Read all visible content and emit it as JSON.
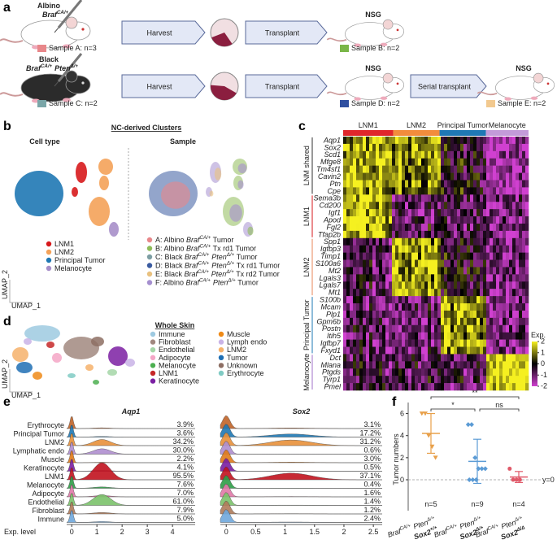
{
  "panel_a": {
    "label": "a",
    "donors": [
      {
        "strain": "Albino",
        "genotype": [
          {
            "t": "Braf",
            "sup": "CA/+"
          }
        ]
      },
      {
        "strain": "Black",
        "genotype": [
          {
            "t": "Braf",
            "sup": "CA/+"
          },
          {
            "t": "Pten",
            "sup": "Δ/+"
          }
        ]
      }
    ],
    "rows": [
      {
        "steps": [
          "Harvest",
          "Transplant"
        ],
        "hosts": [
          "NSG"
        ]
      },
      {
        "steps": [
          "Harvest",
          "Transplant",
          "Serial transplant"
        ],
        "hosts": [
          "NSG",
          "NSG"
        ]
      }
    ],
    "samples": [
      {
        "label": "Sample A: n=3",
        "color": "#e8878a"
      },
      {
        "label": "Sample B: n=2",
        "color": "#7ab648"
      },
      {
        "label": "Sample C: n=2",
        "color": "#7aa6a8"
      },
      {
        "label": "Sample D: n=2",
        "color": "#2f4fa0"
      },
      {
        "label": "Sample E: n=2",
        "color": "#f2c98f"
      }
    ]
  },
  "panel_b": {
    "label": "b",
    "title": "NC-derived Clusters",
    "left_title": "Cell type",
    "right_title": "Sample",
    "umap_y": "UMAP_2",
    "umap_x": "UMAP_1",
    "cell_types": [
      {
        "name": "LNM1",
        "color": "#d7191c"
      },
      {
        "name": "LNM2",
        "color": "#f4a259"
      },
      {
        "name": "Principal Tumor",
        "color": "#1f78b4"
      },
      {
        "name": "Melanocyte",
        "color": "#a78fc9"
      }
    ],
    "samples": [
      {
        "name": [
          "A: Albino ",
          {
            "t": "Braf",
            "sup": "CA/+"
          },
          " Tumor"
        ],
        "color": "#e8878a"
      },
      {
        "name": [
          "B: Albino ",
          {
            "t": "Braf",
            "sup": "CA/+"
          },
          " Tx rd1 Tumor"
        ],
        "color": "#8fbc5a"
      },
      {
        "name": [
          "C: Black ",
          {
            "t": "Braf",
            "sup": "CA/+"
          },
          {
            "t": "Pten",
            "sup": "Δ/+"
          },
          " Tumor"
        ],
        "color": "#7d9ea3"
      },
      {
        "name": [
          "D: Black ",
          {
            "t": "Braf",
            "sup": "CA/+"
          },
          {
            "t": "Pten",
            "sup": "Δ/+"
          },
          " Tx rd1 Tumor"
        ],
        "color": "#3a5ba0"
      },
      {
        "name": [
          "E: Black ",
          {
            "t": "Braf",
            "sup": "CA/+"
          },
          {
            "t": "Pten",
            "sup": "Δ/+"
          },
          " Tx rd2 Tumor"
        ],
        "color": "#e9c17f"
      },
      {
        "name": [
          "F: Albino ",
          {
            "t": "Braf",
            "sup": "CA/+"
          },
          {
            "t": "Pten",
            "sup": "Δ/+"
          },
          " Tumor"
        ],
        "color": "#a58fcf"
      }
    ]
  },
  "panel_c": {
    "label": "c",
    "clusters": [
      {
        "name": "LNM1",
        "color": "#e0262b"
      },
      {
        "name": "LNM2",
        "color": "#f28c3c"
      },
      {
        "name": "Principal Tumor",
        "color": "#1f78b4"
      },
      {
        "name": "Melanocyte",
        "color": "#c39bd9"
      }
    ],
    "groups": [
      {
        "name": "LNM shared",
        "color": "#333333",
        "genes": [
          "Aqp1",
          "Sox2",
          "Scd1",
          "Mfge8",
          "Tm4sf1",
          "Cavin2",
          "Ptn",
          "Cpe"
        ]
      },
      {
        "name": "LNM1",
        "color": "#d7191c",
        "genes": [
          "Sema3b",
          "Cd200",
          "Igf1",
          "Apod",
          "Fgl2",
          "Tfap2b"
        ]
      },
      {
        "name": "LNM2",
        "color": "#e8875a",
        "genes": [
          "Spp1",
          "Igfbp3",
          "Timp1",
          "S100a6",
          "Mt2",
          "Lgals3",
          "Lgals7",
          "Mt1"
        ]
      },
      {
        "name": "Principal Tumor",
        "color": "#1f78b4",
        "genes": [
          "S100b",
          "Mcam",
          "Plp1",
          "Gpm6b",
          "Postn",
          "Itih5",
          "Igfbp7",
          "Fxyd1"
        ]
      },
      {
        "name": "Melanocyte",
        "color": "#a070c8",
        "genes": [
          "Dct",
          "Mlana",
          "Ptgds",
          "Tyrp1",
          "Pmel"
        ]
      }
    ],
    "legend_title": "Exp.",
    "legend_ticks": [
      2,
      1,
      0,
      -1,
      -2
    ]
  },
  "panel_d": {
    "label": "d",
    "title": "Whole Skin",
    "umap_y": "UMAP_2",
    "umap_x": "UMAP_1",
    "cell_types": [
      {
        "name": "Immune",
        "color": "#9ecae1"
      },
      {
        "name": "Fibroblast",
        "color": "#a1887f"
      },
      {
        "name": "Endothelial",
        "color": "#a5d6a7"
      },
      {
        "name": "Adipocyte",
        "color": "#f4a6c6"
      },
      {
        "name": "Melanocyte",
        "color": "#4caf50"
      },
      {
        "name": "LNM1",
        "color": "#c62828"
      },
      {
        "name": "Keratinocyte",
        "color": "#7b1fa2"
      },
      {
        "name": "Muscle",
        "color": "#ef8a17"
      },
      {
        "name": "Lymph endo",
        "color": "#c9b3e6"
      },
      {
        "name": "LNM2",
        "color": "#f6b26b"
      },
      {
        "name": "Tumor",
        "color": "#1f6fb4"
      },
      {
        "name": "Unknown",
        "color": "#8d6e63"
      },
      {
        "name": "Erythrocyte",
        "color": "#80cbc4"
      }
    ]
  },
  "panel_e": {
    "label": "e",
    "xlabel": "Exp. level",
    "cell_types": [
      "Erythrocyte",
      "Principal Tumor",
      "LNM2",
      "Lymphatic endo",
      "Muscle",
      "Keratinocyte",
      "LNM1",
      "Melanocyte",
      "Adipocyte",
      "Endothelial",
      "Fibroblast",
      "Immune"
    ],
    "colors": [
      "#c0642a",
      "#1f78b4",
      "#e8913a",
      "#b08fd0",
      "#e07b1a",
      "#7b1fa2",
      "#c1121f",
      "#2e9e48",
      "#e07aa8",
      "#7cc36b",
      "#b07c5a",
      "#6fa8dc"
    ],
    "genes": [
      {
        "name": "Aqp1",
        "xlim": [
          -0.2,
          4.9
        ],
        "xticks": [
          0,
          1,
          2,
          3,
          4
        ],
        "values": [
          3.9,
          3.6,
          34.2,
          30.0,
          2.2,
          4.1,
          95.5,
          7.6,
          7.0,
          61.0,
          7.9,
          5.0
        ],
        "value_labels": [
          "3.9%",
          "3.6%",
          "34.2%",
          "30.0%",
          "2.2%",
          "4.1%",
          "95.5%",
          "7.6%",
          "7.0%",
          "61.0%",
          "7.9%",
          "5.0%"
        ]
      },
      {
        "name": "Sox2",
        "xlim": [
          -0.1,
          2.65
        ],
        "xticks": [
          0,
          0.5,
          1,
          1.5,
          2,
          2.5
        ],
        "values": [
          3.1,
          17.2,
          31.2,
          0.6,
          3.0,
          0.5,
          37.1,
          0.4,
          1.6,
          1.4,
          1.2,
          2.4
        ],
        "value_labels": [
          "3.1%",
          "17.2%",
          "31.2%",
          "0.6%",
          "3.0%",
          "0.5%",
          "37.1%",
          "0.4%",
          "1.6%",
          "1.4%",
          "1.2%",
          "2.4%"
        ]
      }
    ]
  },
  "panel_f": {
    "label": "f",
    "type": "dot",
    "ylabel": "Tumor numbers",
    "ylim": [
      -2.8,
      7
    ],
    "yticks": [
      0,
      2,
      4,
      6
    ],
    "reference": 0,
    "reference_label": "y=0",
    "significance": [
      "**",
      "*",
      "ns"
    ],
    "groups": [
      {
        "name": [
          {
            "t": "Braf",
            "sup": "CA/+"
          },
          {
            "t": "Pten",
            "sup": "Δ/+"
          }
        ],
        "sox2": [
          {
            "t": "Sox2",
            "sup": "+/+"
          }
        ],
        "color": "#e8a04a",
        "values": [
          6,
          6,
          4,
          3,
          2
        ],
        "mean": 4.2,
        "sd": 1.8,
        "n_label": "n=5"
      },
      {
        "name": [
          {
            "t": "Braf",
            "sup": "CA/+"
          },
          {
            "t": "Pten",
            "sup": "Δ/+"
          }
        ],
        "sox2": [
          {
            "t": "Sox2",
            "sup": "Δ/+"
          }
        ],
        "color": "#5b9bd5",
        "values": [
          5,
          5,
          2,
          1,
          1,
          1,
          0,
          0,
          0
        ],
        "mean": 1.67,
        "sd": 2.0,
        "n_label": "n=9"
      },
      {
        "name": [
          {
            "t": "Braf",
            "sup": "CA/+"
          },
          {
            "t": "Pten",
            "sup": "Δ/+"
          }
        ],
        "sox2": [
          {
            "t": "Sox2",
            "sup": "Δ/Δ"
          }
        ],
        "color": "#e05a6a",
        "values": [
          1,
          0,
          0,
          0
        ],
        "mean": 0.25,
        "sd": 0.5,
        "n_label": "n=4"
      }
    ]
  }
}
